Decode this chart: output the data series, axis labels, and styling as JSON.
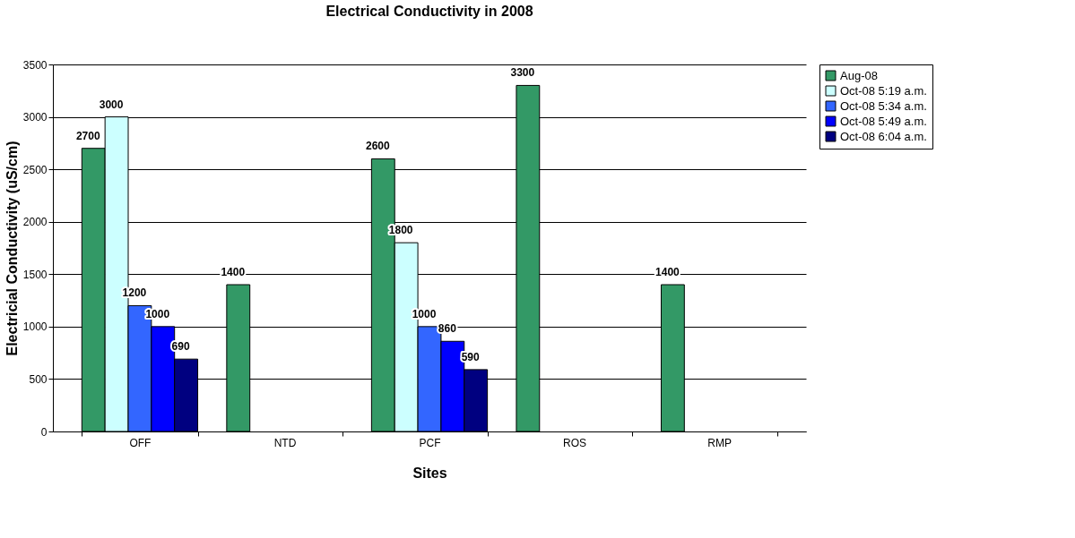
{
  "chart_data": {
    "type": "bar",
    "title": "Electrical Conductivity in 2008",
    "xlabel": "Sites",
    "ylabel": "Electricial Conductivity (uS/cm)",
    "categories": [
      "OFF",
      "NTD",
      "PCF",
      "ROS",
      "RMP"
    ],
    "series": [
      {
        "name": "Aug-08",
        "color": "#339966",
        "values": [
          2700,
          1400,
          2600,
          3300,
          1400
        ]
      },
      {
        "name": "Oct-08 5:19 a.m.",
        "color": "#ccffff",
        "values": [
          3000,
          null,
          1800,
          null,
          null
        ]
      },
      {
        "name": "Oct-08 5:34 a.m.",
        "color": "#3366ff",
        "values": [
          1200,
          null,
          1000,
          null,
          null
        ]
      },
      {
        "name": "Oct-08 5:49 a.m.",
        "color": "#0000ff",
        "values": [
          1000,
          null,
          860,
          null,
          null
        ]
      },
      {
        "name": "Oct-08 6:04 a.m.",
        "color": "#000080",
        "values": [
          690,
          null,
          590,
          null,
          null
        ]
      }
    ],
    "ylim": [
      0,
      3500
    ],
    "yticks": [
      0,
      500,
      1000,
      1500,
      2000,
      2500,
      3000,
      3500
    ],
    "grid": "y",
    "legend": "right",
    "data_labels": true
  }
}
